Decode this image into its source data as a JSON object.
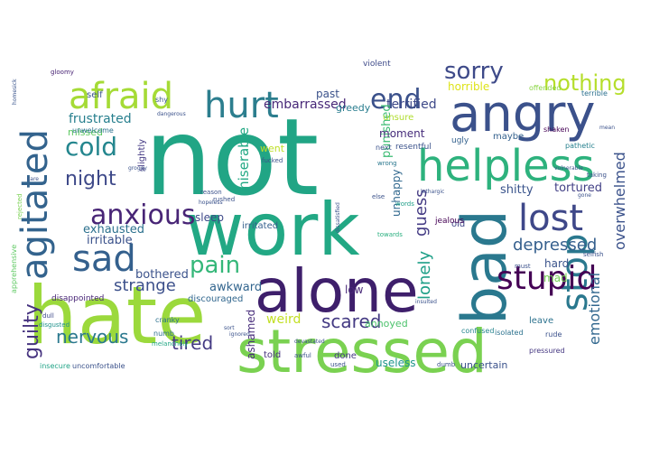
{
  "words": [
    {
      "text": "not",
      "color": "#21a585"
    },
    {
      "text": "hate",
      "color": "#9bd93c"
    },
    {
      "text": "work",
      "color": "#22a884"
    },
    {
      "text": "alone",
      "color": "#3e1f6b"
    },
    {
      "text": "stressed",
      "color": "#7ad151"
    },
    {
      "text": "bad",
      "color": "#2a788e"
    },
    {
      "text": "angry",
      "color": "#3b518b"
    },
    {
      "text": "helpless",
      "color": "#2db27d"
    },
    {
      "text": "hurt",
      "color": "#2c7e8e"
    },
    {
      "text": "afraid",
      "color": "#a5db36"
    },
    {
      "text": "agitated",
      "color": "#33638d"
    },
    {
      "text": "lost",
      "color": "#3f4889"
    },
    {
      "text": "stop",
      "color": "#2a788e"
    },
    {
      "text": "sad",
      "color": "#34608d"
    },
    {
      "text": "stupid",
      "color": "#440154"
    },
    {
      "text": "anxious",
      "color": "#482576"
    },
    {
      "text": "cold",
      "color": "#24868e"
    },
    {
      "text": "end",
      "color": "#3b518b"
    },
    {
      "text": "pain",
      "color": "#35b779"
    },
    {
      "text": "sorry",
      "color": "#3e4a89"
    },
    {
      "text": "nothing",
      "color": "#b5de2b"
    },
    {
      "text": "night",
      "color": "#3e4989"
    },
    {
      "text": "guilty",
      "color": "#46337f"
    },
    {
      "text": "nervous",
      "color": "#2a788e"
    },
    {
      "text": "tired",
      "color": "#443a83"
    },
    {
      "text": "strange",
      "color": "#3c508b"
    },
    {
      "text": "scared",
      "color": "#443a83"
    },
    {
      "text": "depressed",
      "color": "#355f8d"
    },
    {
      "text": "lonely",
      "color": "#1fa088"
    },
    {
      "text": "guess",
      "color": "#443b84"
    },
    {
      "text": "emotional",
      "color": "#31678e"
    },
    {
      "text": "overwhelmed",
      "color": "#3b528b"
    },
    {
      "text": "miserable",
      "color": "#22a884"
    },
    {
      "text": "frustrated",
      "color": "#277f8e"
    },
    {
      "text": "exhausted",
      "color": "#2c718e"
    },
    {
      "text": "irritable",
      "color": "#3b528b"
    },
    {
      "text": "embarrassed",
      "color": "#482878"
    },
    {
      "text": "terrified",
      "color": "#3e4989"
    },
    {
      "text": "awkward",
      "color": "#32658e"
    },
    {
      "text": "bothered",
      "color": "#3b528b"
    },
    {
      "text": "weird",
      "color": "#c2df23"
    },
    {
      "text": "ashamed",
      "color": "#472c7a"
    },
    {
      "text": "tortured",
      "color": "#424086"
    },
    {
      "text": "shitty",
      "color": "#3a548c"
    },
    {
      "text": "punished",
      "color": "#3dbc74"
    },
    {
      "text": "unhappy",
      "color": "#31688e"
    },
    {
      "text": "moment",
      "color": "#472d7b"
    },
    {
      "text": "sleep",
      "color": "#3e4989"
    },
    {
      "text": "past",
      "color": "#3b528b"
    },
    {
      "text": "greedy",
      "color": "#287c8e"
    },
    {
      "text": "missed",
      "color": "#5ec962"
    },
    {
      "text": "went",
      "color": "#bddf26"
    },
    {
      "text": "slightly",
      "color": "#443983"
    },
    {
      "text": "discouraged",
      "color": "#31678e"
    },
    {
      "text": "disappointed",
      "color": "#482576"
    },
    {
      "text": "irritated",
      "color": "#35608d"
    },
    {
      "text": "low",
      "color": "#482878"
    },
    {
      "text": "mad",
      "color": "#75d054"
    },
    {
      "text": "hard",
      "color": "#3a538b"
    },
    {
      "text": "annoyed",
      "color": "#4cc26c"
    },
    {
      "text": "old",
      "color": "#404688"
    },
    {
      "text": "maybe",
      "color": "#34618d"
    },
    {
      "text": "uncertain",
      "color": "#3b528b"
    },
    {
      "text": "useless",
      "color": "#1f968b"
    },
    {
      "text": "done",
      "color": "#443983"
    },
    {
      "text": "told",
      "color": "#46327e"
    },
    {
      "text": "leave",
      "color": "#2c728e"
    },
    {
      "text": "confused",
      "color": "#25858e"
    },
    {
      "text": "unsure",
      "color": "#b0dd2f"
    },
    {
      "text": "horrible",
      "color": "#dde318"
    },
    {
      "text": "ugly",
      "color": "#34618d"
    },
    {
      "text": "self",
      "color": "#3a548c"
    },
    {
      "text": "unwelcome",
      "color": "#2c718e"
    },
    {
      "text": "shy",
      "color": "#39568c"
    },
    {
      "text": "violent",
      "color": "#3e4a89"
    },
    {
      "text": "resentful",
      "color": "#3b528b"
    },
    {
      "text": "uncomfortable",
      "color": "#3b528b"
    },
    {
      "text": "insecure",
      "color": "#20a386"
    },
    {
      "text": "cranky",
      "color": "#2d708e"
    },
    {
      "text": "numb",
      "color": "#2e6f8e"
    },
    {
      "text": "melancholy",
      "color": "#22a884"
    },
    {
      "text": "isolated",
      "color": "#2c728e"
    },
    {
      "text": "rude",
      "color": "#3b518b"
    },
    {
      "text": "pressured",
      "color": "#453781"
    },
    {
      "text": "pathetic",
      "color": "#27808e"
    },
    {
      "text": "offended",
      "color": "#8bd646"
    },
    {
      "text": "terrible",
      "color": "#2c718e"
    },
    {
      "text": "shaken",
      "color": "#440154"
    },
    {
      "text": "jealous",
      "color": "#440154"
    },
    {
      "text": "apprehensive",
      "color": "#5ec962"
    },
    {
      "text": "rejected",
      "color": "#7ad151"
    },
    {
      "text": "dull",
      "color": "#3e4989"
    },
    {
      "text": "disgusted",
      "color": "#20928c"
    },
    {
      "text": "gloomy",
      "color": "#482374"
    },
    {
      "text": "homesick",
      "color": "#3a548c"
    },
    {
      "text": "selfish",
      "color": "#3b528b"
    },
    {
      "text": "words",
      "color": "#1f9e89"
    },
    {
      "text": "next",
      "color": "#3b528b"
    },
    {
      "text": "wrong",
      "color": "#2a778e"
    },
    {
      "text": "towards",
      "color": "#29af7f"
    },
    {
      "text": "awful",
      "color": "#3b528b"
    },
    {
      "text": "used",
      "color": "#3b528b"
    },
    {
      "text": "dumb",
      "color": "#3b528b"
    },
    {
      "text": "devastated",
      "color": "#3b528b"
    },
    {
      "text": "fucked",
      "color": "#3b528b"
    },
    {
      "text": "rushed",
      "color": "#3b528b"
    },
    {
      "text": "sort",
      "color": "#3b528b"
    },
    {
      "text": "else",
      "color": "#3b528b"
    },
    {
      "text": "must",
      "color": "#3b528b"
    },
    {
      "text": "vulnerable",
      "color": "#3b528b"
    },
    {
      "text": "taking",
      "color": "#3b528b"
    },
    {
      "text": "lethargic",
      "color": "#3b528b"
    },
    {
      "text": "groggy",
      "color": "#3b528b"
    },
    {
      "text": "mean",
      "color": "#3b528b"
    },
    {
      "text": "dissatisfied",
      "color": "#3b528b"
    },
    {
      "text": "reason",
      "color": "#3b528b"
    },
    {
      "text": "hopeless",
      "color": "#3b528b"
    },
    {
      "text": "ignored",
      "color": "#3b528b"
    },
    {
      "text": "insulted",
      "color": "#3b528b"
    },
    {
      "text": "care",
      "color": "#3b528b"
    },
    {
      "text": "dangerous",
      "color": "#3b528b"
    },
    {
      "text": "gone",
      "color": "#3b528b"
    }
  ]
}
